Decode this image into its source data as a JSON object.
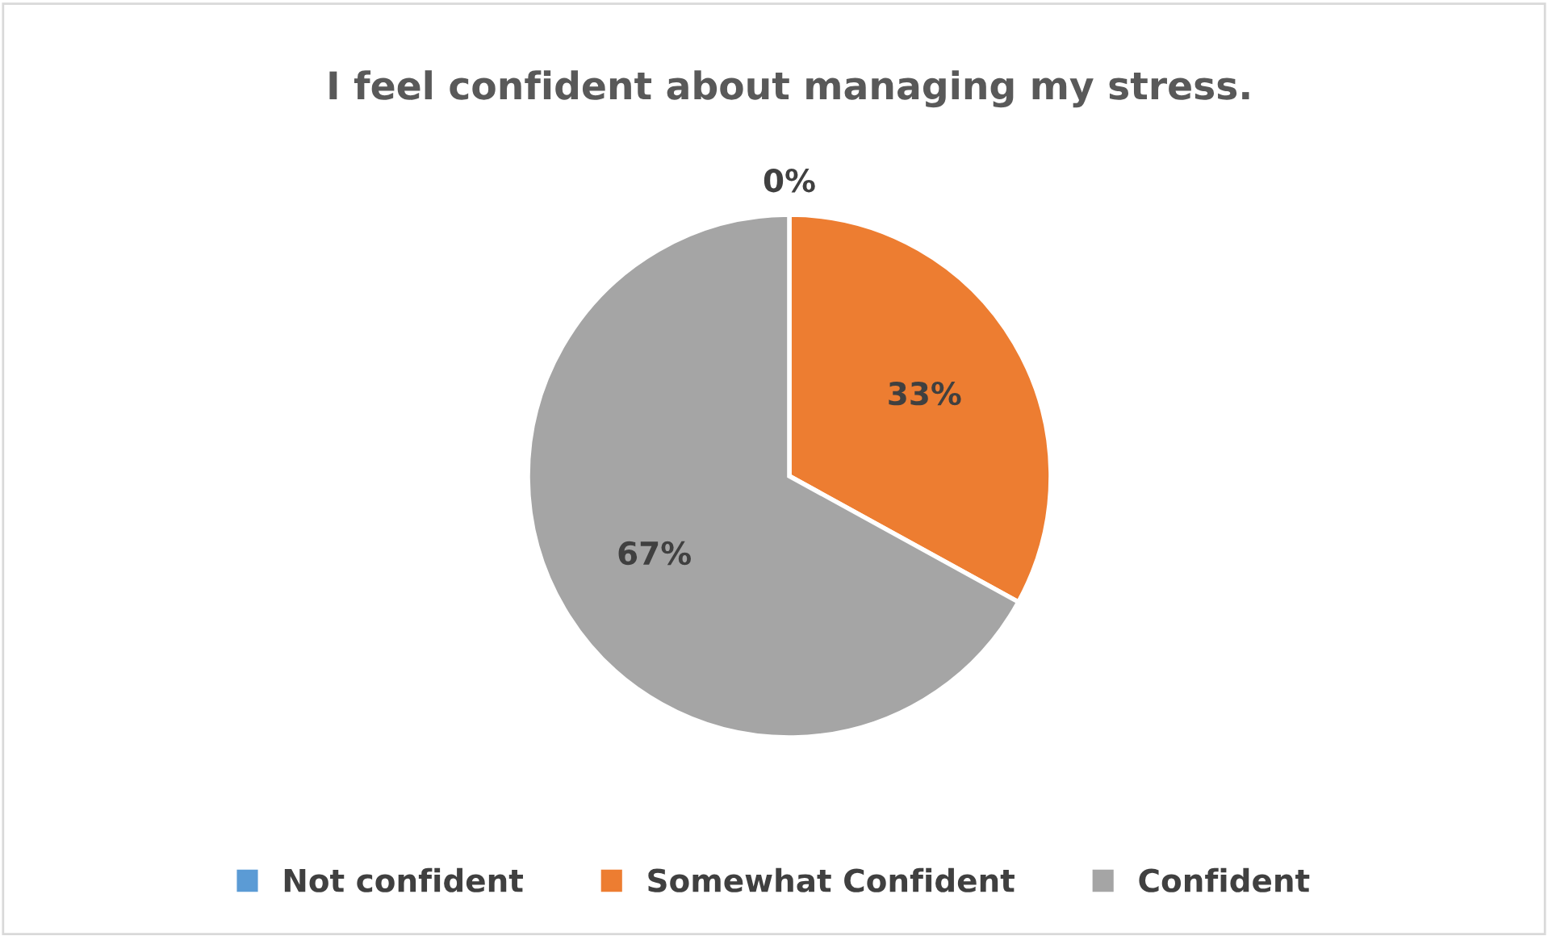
{
  "chart_data": {
    "type": "pie",
    "title": "I feel confident about managing my stress.",
    "categories": [
      "Not confident",
      "Somewhat Confident",
      "Confident"
    ],
    "values": [
      0,
      33,
      67
    ],
    "colors": [
      "#5b9bd5",
      "#ed7d31",
      "#a5a5a5"
    ],
    "value_labels": [
      "0%",
      "33%",
      "67%"
    ],
    "legend": "bottom"
  }
}
